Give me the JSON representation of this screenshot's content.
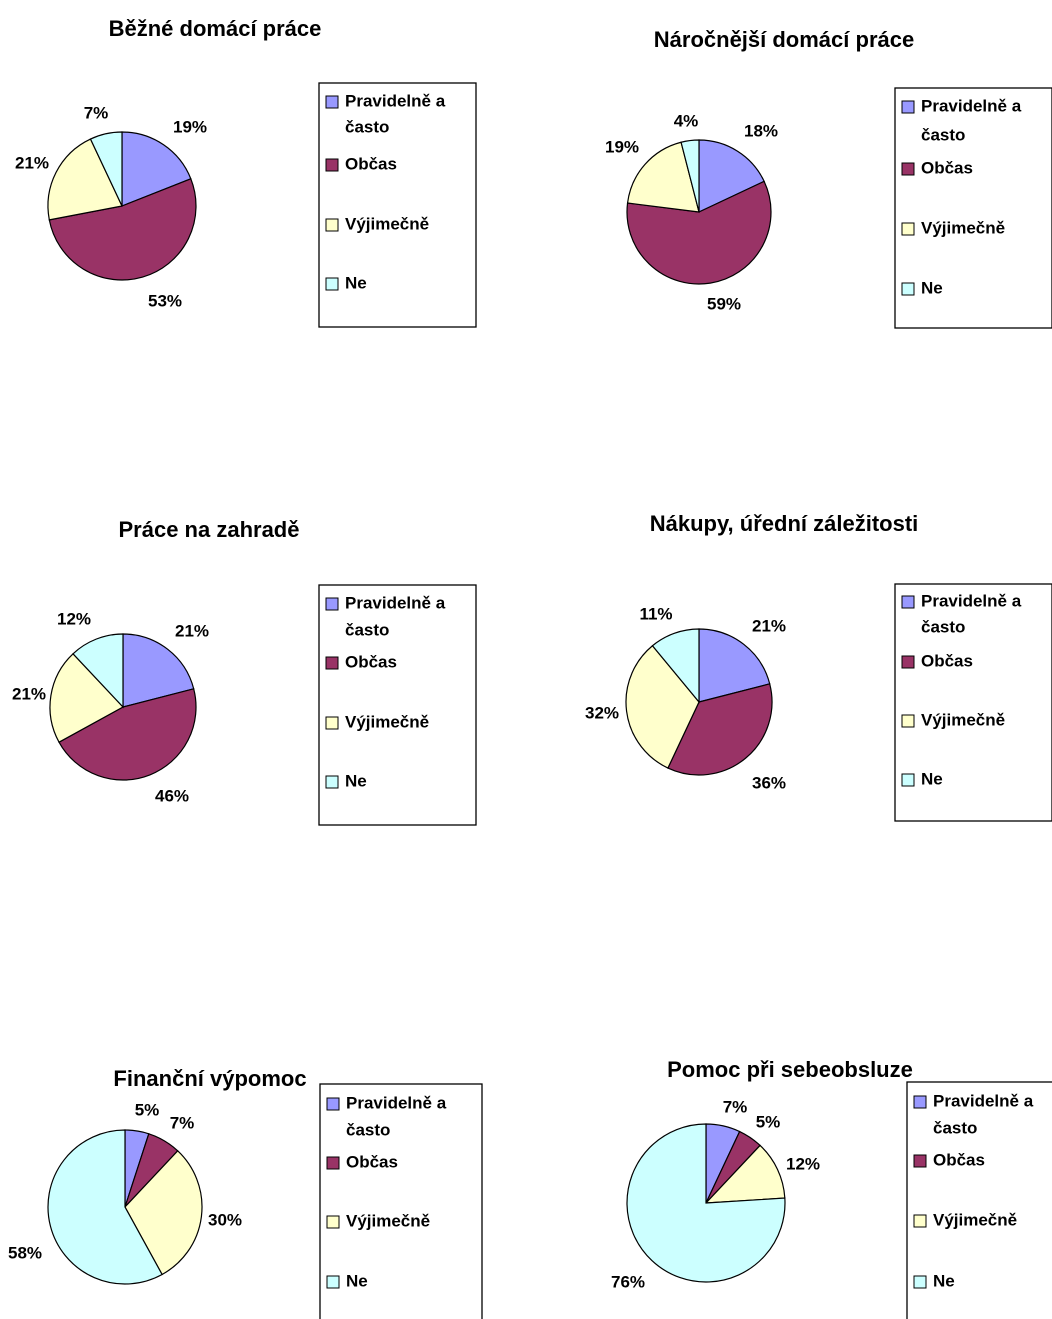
{
  "legend_labels": [
    [
      "Pravidelně a",
      "často"
    ],
    [
      "Občas"
    ],
    [
      "Výjimečně"
    ],
    [
      "Ne"
    ]
  ],
  "colors": [
    "#9999ff",
    "#993366",
    "#ffffcc",
    "#ccffff"
  ],
  "chart_data": [
    {
      "type": "pie",
      "title": "Běžné domácí práce",
      "categories": [
        "Pravidelně a často",
        "Občas",
        "Výjimečně",
        "Ne"
      ],
      "values": [
        19,
        53,
        21,
        7
      ],
      "labels": [
        "19%",
        "53%",
        "21%",
        "7%"
      ],
      "legend": "right"
    },
    {
      "type": "pie",
      "title": "Náročnější domácí práce",
      "categories": [
        "Pravidelně a často",
        "Občas",
        "Výjimečně",
        "Ne"
      ],
      "values": [
        18,
        59,
        19,
        4
      ],
      "labels": [
        "18%",
        "59%",
        "19%",
        "4%"
      ],
      "legend": "right"
    },
    {
      "type": "pie",
      "title": "Práce na zahradě",
      "categories": [
        "Pravidelně a často",
        "Občas",
        "Výjimečně",
        "Ne"
      ],
      "values": [
        21,
        46,
        21,
        12
      ],
      "labels": [
        "21%",
        "46%",
        "21%",
        "12%"
      ],
      "legend": "right"
    },
    {
      "type": "pie",
      "title": "Nákupy, úřední záležitosti",
      "categories": [
        "Pravidelně a často",
        "Občas",
        "Výjimečně",
        "Ne"
      ],
      "values": [
        21,
        36,
        32,
        11
      ],
      "labels": [
        "21%",
        "36%",
        "32%",
        "11%"
      ],
      "legend": "right"
    },
    {
      "type": "pie",
      "title": "Finanční výpomoc",
      "categories": [
        "Pravidelně a často",
        "Občas",
        "Výjimečně",
        "Ne"
      ],
      "values": [
        5,
        7,
        30,
        58
      ],
      "labels": [
        "5%",
        "7%",
        "30%",
        "58%"
      ],
      "legend": "right"
    },
    {
      "type": "pie",
      "title": "Pomoc při sebeobsluze",
      "categories": [
        "Pravidelně a často",
        "Občas",
        "Výjimečně",
        "Ne"
      ],
      "values": [
        7,
        5,
        12,
        76
      ],
      "labels": [
        "7%",
        "5%",
        "12%",
        "76%"
      ],
      "legend": "right"
    }
  ]
}
